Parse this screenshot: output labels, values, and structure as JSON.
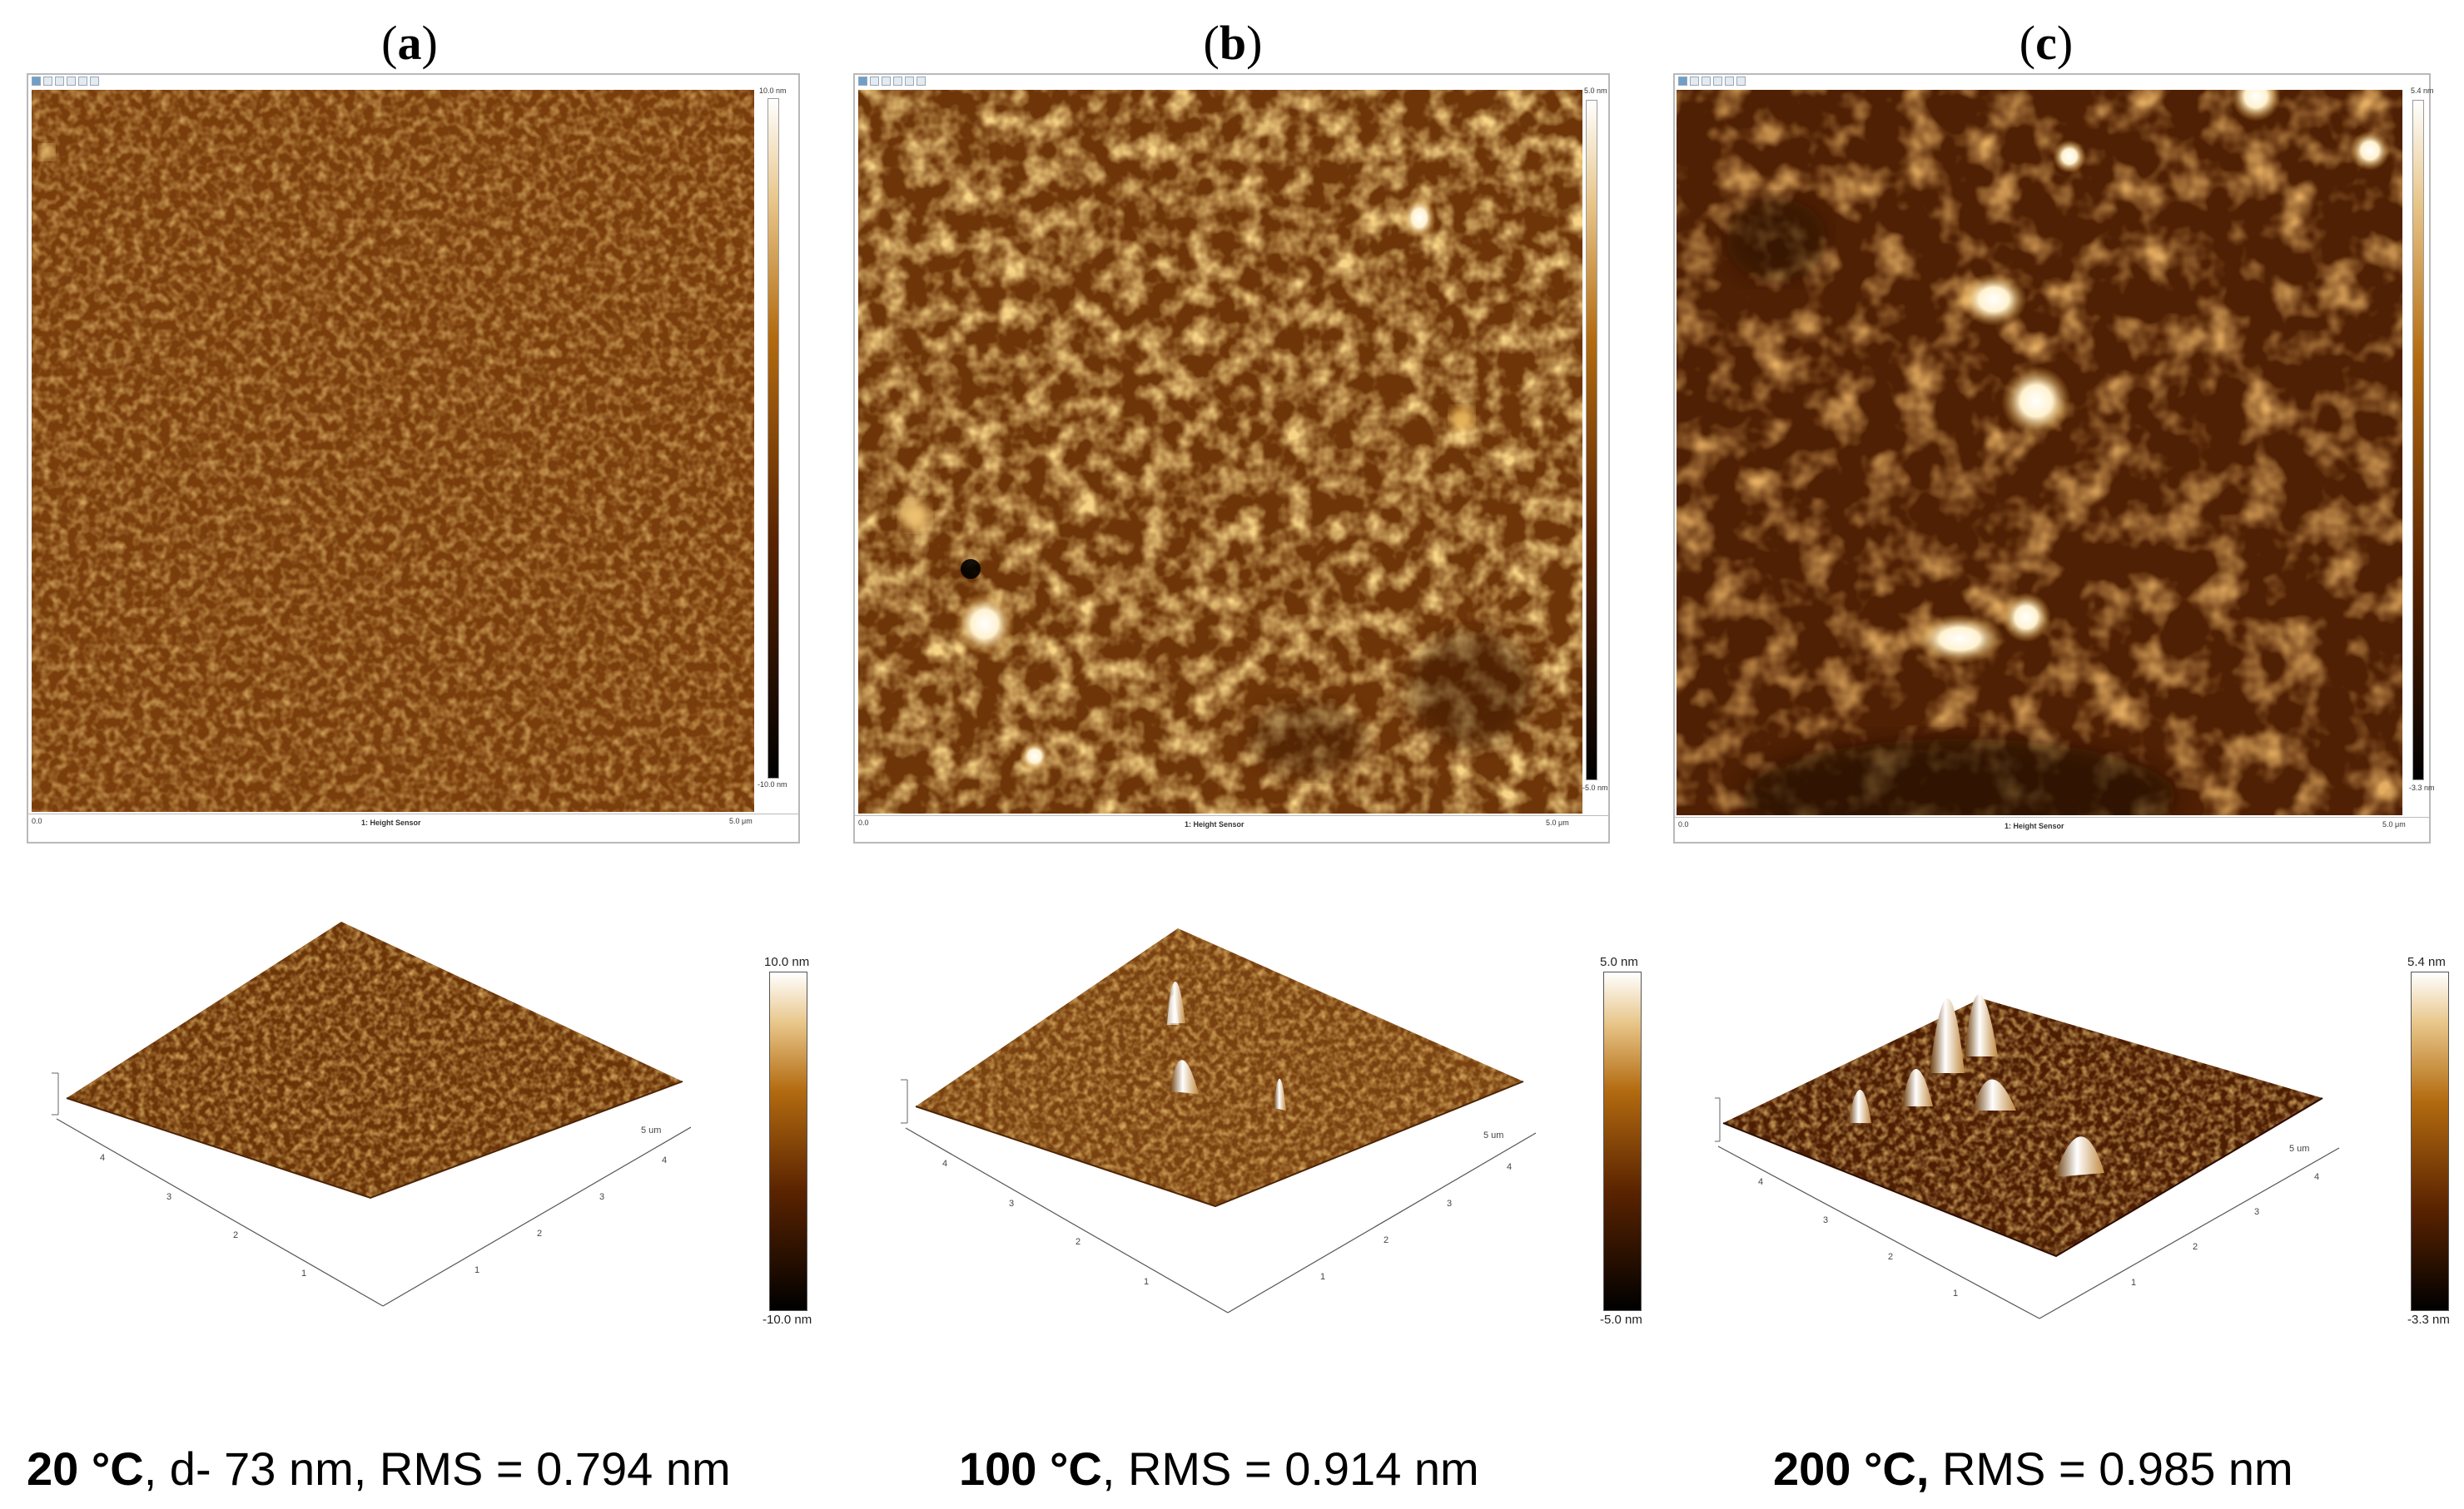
{
  "panels": [
    {
      "label": "a",
      "caption": {
        "temp": "20 °C",
        "rest": ", d- 73 nm, RMS = 0.794 nm"
      },
      "afm_2d": {
        "zmax": "10.0 nm",
        "zmin": "-10.0 nm",
        "x_start": "0.0",
        "x_end": "5.0 μm",
        "channel": "1: Height Sensor"
      },
      "afm_3d": {
        "zmax": "10.0 nm",
        "zmin": "-10.0 nm",
        "axis_unit": "5 um",
        "ticks": [
          "1",
          "2",
          "3",
          "4"
        ]
      }
    },
    {
      "label": "b",
      "caption": {
        "temp": "100 °C",
        "rest": ", RMS = 0.914 nm"
      },
      "afm_2d": {
        "zmax": "5.0 nm",
        "zmin": "-5.0 nm",
        "x_start": "0.0",
        "x_end": "5.0 μm",
        "channel": "1: Height Sensor"
      },
      "afm_3d": {
        "zmax": "5.0 nm",
        "zmin": "-5.0 nm",
        "axis_unit": "5 um",
        "ticks": [
          "1",
          "2",
          "3",
          "4"
        ]
      }
    },
    {
      "label": "c",
      "caption": {
        "temp": "200 °C,",
        "rest": " RMS = 0.985 nm"
      },
      "afm_2d": {
        "zmax": "5.4 nm",
        "zmin": "-3.3 nm",
        "x_start": "0.0",
        "x_end": "5.0 μm",
        "channel": "1: Height Sensor"
      },
      "afm_3d": {
        "zmax": "5.4 nm",
        "zmin": "-3.3 nm",
        "axis_unit": "5 um",
        "ticks": [
          "1",
          "2",
          "3",
          "4"
        ]
      }
    }
  ],
  "colors": {
    "afm_dark": "#1a0500",
    "afm_mid": "#8a4a10",
    "afm_light": "#d7a14a",
    "afm_white": "#ffffff"
  },
  "icons": [
    "toolbar-icon-row",
    "color-scale-bar"
  ]
}
